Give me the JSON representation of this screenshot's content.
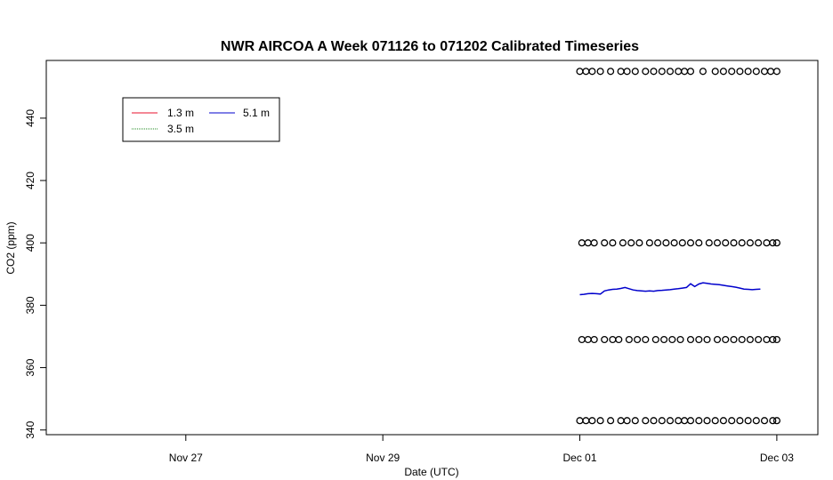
{
  "chart_data": {
    "type": "line",
    "title": "NWR AIRCOA A  Week 071126 to 071202  Calibrated Timeseries",
    "xlabel": "Date (UTC)",
    "ylabel": "CO2 (ppm)",
    "x_axis": {
      "kind": "date",
      "range": [
        "2007-11-25T14:00",
        "2007-12-03T10:00"
      ],
      "ticks": [
        {
          "value": "2007-11-27",
          "label": "Nov 27"
        },
        {
          "value": "2007-11-29",
          "label": "Nov 29"
        },
        {
          "value": "2007-12-01",
          "label": "Dec 01"
        },
        {
          "value": "2007-12-03",
          "label": "Dec 03"
        }
      ]
    },
    "y_axis": {
      "range": [
        338.5,
        458.5
      ],
      "ticks": [
        340,
        360,
        380,
        400,
        420,
        440
      ]
    },
    "grid": false,
    "legend": {
      "placement": "top-left",
      "entries": [
        {
          "label": "1.3 m",
          "color": "#e8102e"
        },
        {
          "label": "3.5 m",
          "color": "#1f8a1f"
        },
        {
          "label": "5.1 m",
          "color": "#0000cc"
        }
      ]
    },
    "series": [
      {
        "name": "5.1 m",
        "color": "#0000cc",
        "style": "line",
        "points": [
          [
            "2007-12-01T00:00",
            383.4
          ],
          [
            "2007-12-01T01:00",
            383.5
          ],
          [
            "2007-12-01T02:00",
            383.7
          ],
          [
            "2007-12-01T03:00",
            383.8
          ],
          [
            "2007-12-01T04:00",
            383.7
          ],
          [
            "2007-12-01T05:00",
            383.6
          ],
          [
            "2007-12-01T06:00",
            384.6
          ],
          [
            "2007-12-01T07:00",
            384.9
          ],
          [
            "2007-12-01T08:00",
            385.1
          ],
          [
            "2007-12-01T09:00",
            385.2
          ],
          [
            "2007-12-01T10:00",
            385.4
          ],
          [
            "2007-12-01T11:00",
            385.7
          ],
          [
            "2007-12-01T12:00",
            385.3
          ],
          [
            "2007-12-01T13:00",
            384.9
          ],
          [
            "2007-12-01T14:00",
            384.7
          ],
          [
            "2007-12-01T15:00",
            384.6
          ],
          [
            "2007-12-01T16:00",
            384.5
          ],
          [
            "2007-12-01T17:00",
            384.6
          ],
          [
            "2007-12-01T18:00",
            384.5
          ],
          [
            "2007-12-01T19:00",
            384.7
          ],
          [
            "2007-12-01T20:00",
            384.8
          ],
          [
            "2007-12-01T21:00",
            384.9
          ],
          [
            "2007-12-01T22:00",
            385.0
          ],
          [
            "2007-12-01T23:00",
            385.2
          ],
          [
            "2007-12-02T00:00",
            385.3
          ],
          [
            "2007-12-02T01:00",
            385.5
          ],
          [
            "2007-12-02T02:00",
            385.7
          ],
          [
            "2007-12-02T03:00",
            386.9
          ],
          [
            "2007-12-02T04:00",
            386.0
          ],
          [
            "2007-12-02T05:00",
            386.8
          ],
          [
            "2007-12-02T06:00",
            387.2
          ],
          [
            "2007-12-02T07:00",
            387.0
          ],
          [
            "2007-12-02T08:00",
            386.8
          ],
          [
            "2007-12-02T09:00",
            386.7
          ],
          [
            "2007-12-02T10:00",
            386.6
          ],
          [
            "2007-12-02T11:00",
            386.4
          ],
          [
            "2007-12-02T12:00",
            386.2
          ],
          [
            "2007-12-02T13:00",
            386.0
          ],
          [
            "2007-12-02T14:00",
            385.8
          ],
          [
            "2007-12-02T15:00",
            385.5
          ],
          [
            "2007-12-02T16:00",
            385.2
          ],
          [
            "2007-12-02T17:00",
            385.1
          ],
          [
            "2007-12-02T18:00",
            385.0
          ],
          [
            "2007-12-02T19:00",
            385.1
          ],
          [
            "2007-12-02T20:00",
            385.2
          ]
        ]
      },
      {
        "style": "points",
        "color": "#000000",
        "y": 455,
        "x_hours": [
          0,
          1.5,
          3,
          5,
          7.5,
          10,
          11.5,
          13.5,
          16,
          18,
          20,
          22,
          24,
          25.5,
          27,
          30,
          33,
          35,
          37,
          39,
          41,
          43,
          45,
          46.5,
          48
        ]
      },
      {
        "style": "points",
        "color": "#000000",
        "y": 400,
        "x_hours": [
          0.5,
          2,
          3.5,
          6,
          8,
          10.5,
          12.5,
          14.5,
          17,
          19,
          21,
          23,
          25,
          27,
          29,
          31.5,
          33.5,
          35.5,
          37.5,
          39.5,
          41.5,
          43.5,
          45.5,
          47,
          48
        ]
      },
      {
        "style": "points",
        "color": "#000000",
        "y": 369,
        "x_hours": [
          0.5,
          2,
          3.5,
          6,
          8,
          9.5,
          12,
          14,
          16,
          18.5,
          20.5,
          22.5,
          24.5,
          27,
          29,
          31,
          33.5,
          35.5,
          37.5,
          39.5,
          41.5,
          43.5,
          45.5,
          47,
          48
        ]
      },
      {
        "style": "points",
        "color": "#000000",
        "y": 343,
        "x_hours": [
          0,
          1.5,
          3,
          5,
          7.5,
          10,
          11.5,
          13.5,
          16,
          18,
          20,
          22,
          24,
          25.5,
          27,
          29,
          31,
          33,
          35,
          37,
          39,
          41,
          43,
          45,
          47,
          48
        ]
      }
    ]
  }
}
